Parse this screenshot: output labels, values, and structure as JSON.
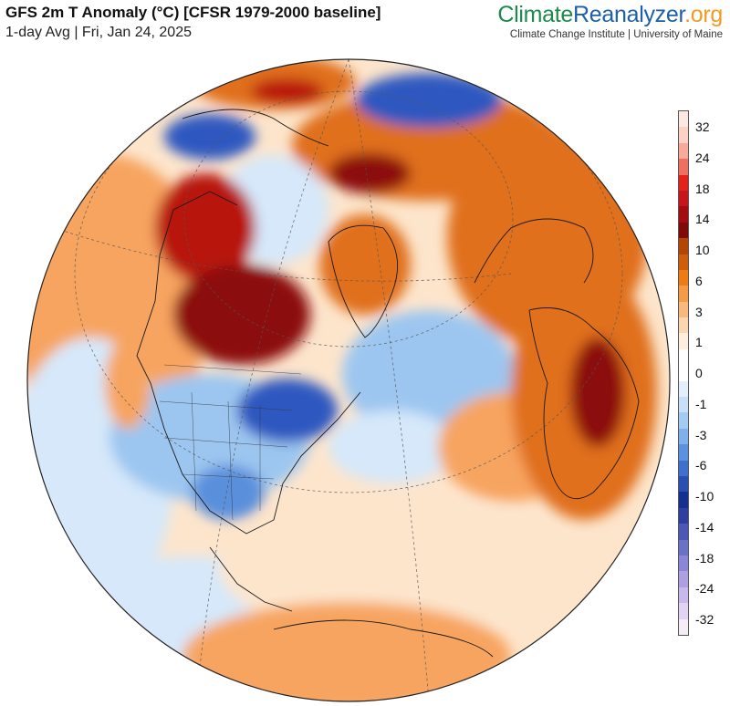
{
  "header": {
    "title": "GFS 2m T Anomaly (°C) [CFSR 1979-2000 baseline]",
    "subtitle": "1-day Avg | Fri, Jan 24, 2025"
  },
  "brand": {
    "part1": "Climate",
    "part2": "Reanalyzer",
    "part3": ".org",
    "tagline": "Climate Change Institute | University of Maine",
    "colors": {
      "green": "#1c8a4a",
      "blue": "#1f5fa8",
      "orange": "#f29a1f"
    }
  },
  "colorbar": {
    "colors_top_to_bottom": [
      "#fde9e4",
      "#fbd2c4",
      "#f7a99a",
      "#ef6f62",
      "#e3231b",
      "#c8141c",
      "#a30c12",
      "#7e0a0a",
      "#b34607",
      "#cf5e0a",
      "#ee7c14",
      "#f59a45",
      "#f8b97e",
      "#fbd6b0",
      "#fdeede",
      "#ffffff",
      "#ffffff",
      "#e3effb",
      "#c7e0f8",
      "#a4cbf2",
      "#7fb0ea",
      "#5a92e0",
      "#3f70cc",
      "#2a4fb0",
      "#16308f",
      "#2e3fa0",
      "#4b58b8",
      "#6a72c8",
      "#8c86d6",
      "#ad9fe0",
      "#c9b8ea",
      "#e2d3f2",
      "#f6ecf8"
    ],
    "tick_labels": [
      "32",
      "24",
      "18",
      "14",
      "10",
      "6",
      "3",
      "1",
      "0",
      "-1",
      "-3",
      "-6",
      "-10",
      "-14",
      "-18",
      "-24",
      "-32"
    ]
  },
  "map": {
    "projection": "orthographic",
    "center": "North Atlantic / North America, north polar view",
    "colors": {
      "ocean_neutral": "#ffffff",
      "warm_light": "#fde5cc",
      "warm_mid": "#f7a460",
      "warm_strong": "#e0701a",
      "hot": "#b8180f",
      "hot_deep": "#8c0b0b",
      "cool_light": "#d6e8fa",
      "cool_mid": "#9cc6f0",
      "cool_strong": "#5a8fdc",
      "cold": "#2f58c0"
    }
  }
}
